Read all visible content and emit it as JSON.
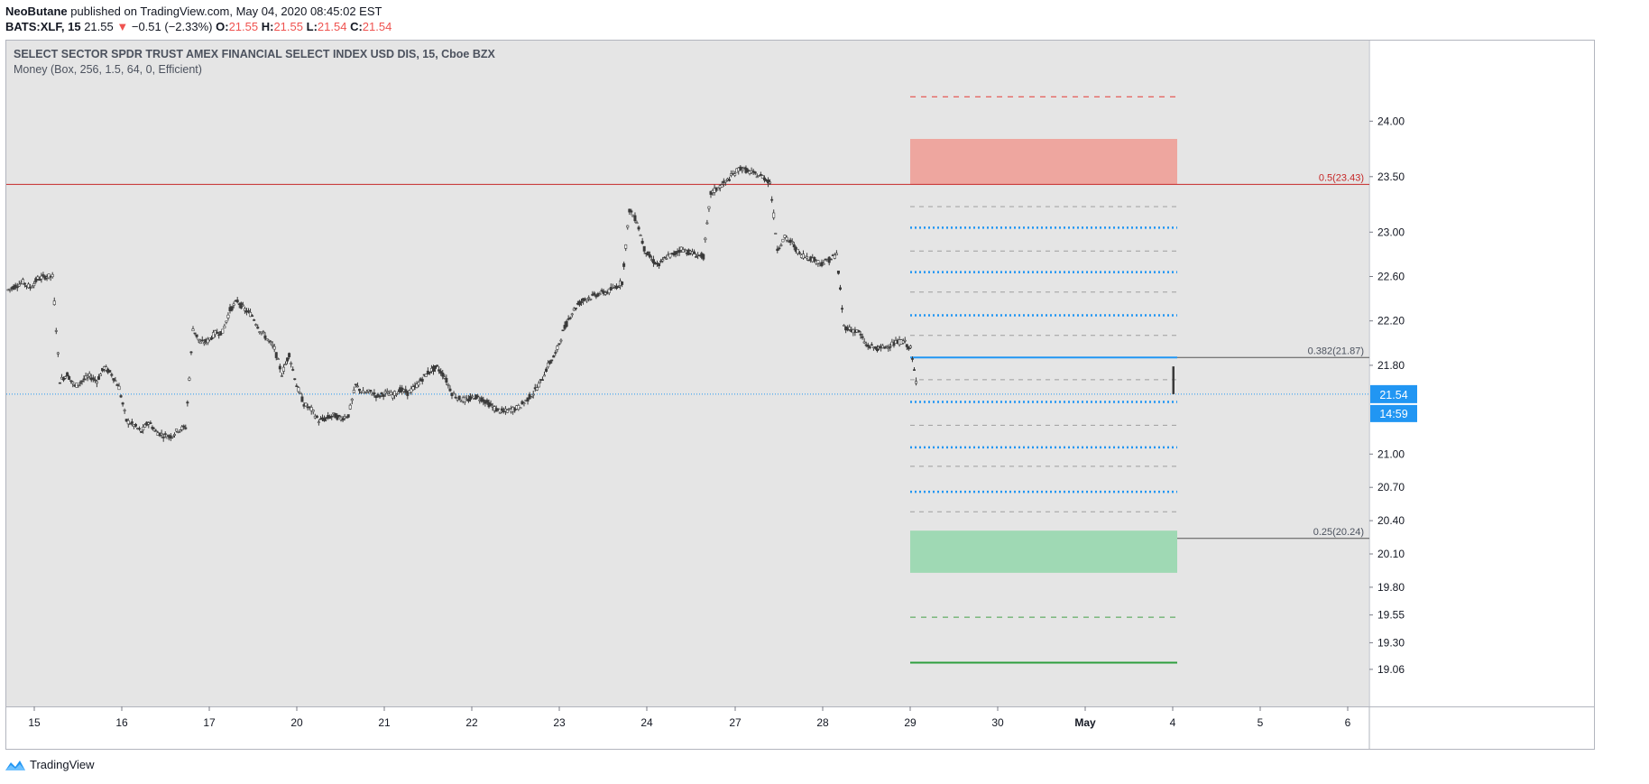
{
  "header": {
    "publisher": "NeoButane",
    "published_text": "published on TradingView.com, May 04, 2020 08:45:02 EST",
    "symbol": "BATS:XLF, 15",
    "last": "21.55",
    "change": "−0.51 (−2.33%)",
    "o_label": "O:",
    "o": "21.55",
    "h_label": "H:",
    "h": "21.55",
    "l_label": "L:",
    "l": "21.54",
    "c_label": "C:",
    "c": "21.54"
  },
  "legend": {
    "title": "SELECT SECTOR SPDR TRUST AMEX FINANCIAL SELECT INDEX USD DIS, 15, Cboe BZX",
    "indicator": "Money (Box, 256, 1.5, 64, 0, Efficient)"
  },
  "price_badge": "21.54",
  "countdown_badge": "14:59",
  "footer": {
    "brand": "TradingView"
  },
  "colors": {
    "background": "#e5e5e5",
    "candle": "#3a3a3a",
    "resistance_line": "#c62828",
    "blue_level": "#2196f3",
    "red_zone": "#f28b82",
    "green_zone": "#81d4a0",
    "badge": "#2196f3",
    "down": "#ef5350"
  },
  "chart_data": {
    "type": "candlestick",
    "y_ticks": [
      "24.00",
      "23.50",
      "23.00",
      "22.60",
      "22.20",
      "21.80",
      "21.00",
      "20.70",
      "20.40",
      "20.10",
      "19.80",
      "19.55",
      "19.30",
      "19.06"
    ],
    "x_ticks": [
      "15",
      "16",
      "17",
      "20",
      "21",
      "22",
      "23",
      "24",
      "27",
      "28",
      "29",
      "30",
      "May",
      "4",
      "5",
      "6"
    ],
    "fib_labels": [
      {
        "text": "0.5(23.43)",
        "value": 23.43
      },
      {
        "text": "0.382(21.87)",
        "value": 21.87
      },
      {
        "text": "0.25(20.24)",
        "value": 20.24
      }
    ],
    "resistance": 23.43,
    "last_price": 21.54,
    "zones": [
      {
        "name": "supply",
        "from": 23.43,
        "to": 23.84,
        "color": "red"
      },
      {
        "name": "demand",
        "from": 19.93,
        "to": 20.31,
        "color": "green"
      }
    ],
    "levels": {
      "red_dashed": [
        24.22
      ],
      "gray_dashed": [
        23.23,
        22.83,
        22.46,
        22.07,
        21.67,
        21.26,
        20.89,
        20.48
      ],
      "blue_dotted": [
        23.04,
        22.64,
        22.25,
        21.47,
        21.06,
        20.66
      ],
      "blue_solid": [
        21.87
      ],
      "green_dashed": [
        19.53
      ],
      "green_solid": [
        19.12
      ]
    },
    "path": [
      [
        0,
        22.48
      ],
      [
        2,
        22.55
      ],
      [
        3,
        22.5
      ],
      [
        4,
        22.58
      ],
      [
        5,
        22.6
      ],
      [
        6,
        22.6
      ],
      [
        7,
        21.66
      ],
      [
        8,
        21.72
      ],
      [
        9,
        21.61
      ],
      [
        10,
        21.66
      ],
      [
        11,
        21.7
      ],
      [
        12,
        21.66
      ],
      [
        13,
        21.78
      ],
      [
        14,
        21.72
      ],
      [
        15,
        21.6
      ],
      [
        16,
        21.3
      ],
      [
        17,
        21.26
      ],
      [
        18,
        21.2
      ],
      [
        19,
        21.29
      ],
      [
        20,
        21.2
      ],
      [
        21,
        21.17
      ],
      [
        22,
        21.16
      ],
      [
        23,
        21.22
      ],
      [
        24,
        21.24
      ],
      [
        25,
        22.13
      ],
      [
        26,
        22.0
      ],
      [
        27,
        22.02
      ],
      [
        28,
        22.09
      ],
      [
        29,
        22.1
      ],
      [
        30,
        22.3
      ],
      [
        31,
        22.38
      ],
      [
        32,
        22.3
      ],
      [
        33,
        22.25
      ],
      [
        34,
        22.12
      ],
      [
        35,
        22.04
      ],
      [
        36,
        21.95
      ],
      [
        37,
        21.72
      ],
      [
        38,
        21.9
      ],
      [
        39,
        21.62
      ],
      [
        40,
        21.45
      ],
      [
        41,
        21.4
      ],
      [
        42,
        21.3
      ],
      [
        43,
        21.32
      ],
      [
        44,
        21.35
      ],
      [
        45,
        21.32
      ],
      [
        46,
        21.35
      ],
      [
        47,
        21.62
      ],
      [
        48,
        21.55
      ],
      [
        49,
        21.56
      ],
      [
        50,
        21.52
      ],
      [
        51,
        21.55
      ],
      [
        52,
        21.53
      ],
      [
        53,
        21.58
      ],
      [
        54,
        21.55
      ],
      [
        55,
        21.6
      ],
      [
        56,
        21.68
      ],
      [
        57,
        21.75
      ],
      [
        58,
        21.78
      ],
      [
        59,
        21.7
      ],
      [
        60,
        21.55
      ],
      [
        61,
        21.5
      ],
      [
        62,
        21.48
      ],
      [
        63,
        21.52
      ],
      [
        64,
        21.5
      ],
      [
        65,
        21.45
      ],
      [
        66,
        21.4
      ],
      [
        67,
        21.38
      ],
      [
        68,
        21.4
      ],
      [
        69,
        21.42
      ],
      [
        70,
        21.48
      ],
      [
        71,
        21.55
      ],
      [
        72,
        21.65
      ],
      [
        73,
        21.8
      ],
      [
        74,
        21.9
      ],
      [
        75,
        22.1
      ],
      [
        76,
        22.25
      ],
      [
        77,
        22.35
      ],
      [
        78,
        22.4
      ],
      [
        79,
        22.42
      ],
      [
        80,
        22.45
      ],
      [
        81,
        22.46
      ],
      [
        82,
        22.5
      ],
      [
        83,
        22.55
      ],
      [
        84,
        23.2
      ],
      [
        85,
        23.1
      ],
      [
        86,
        22.85
      ],
      [
        87,
        22.75
      ],
      [
        88,
        22.7
      ],
      [
        89,
        22.78
      ],
      [
        90,
        22.8
      ],
      [
        91,
        22.85
      ],
      [
        92,
        22.82
      ],
      [
        93,
        22.8
      ],
      [
        94,
        22.78
      ],
      [
        95,
        23.35
      ],
      [
        96,
        23.4
      ],
      [
        97,
        23.45
      ],
      [
        98,
        23.52
      ],
      [
        99,
        23.58
      ],
      [
        100,
        23.55
      ],
      [
        101,
        23.52
      ],
      [
        102,
        23.5
      ],
      [
        103,
        23.45
      ],
      [
        104,
        22.85
      ],
      [
        105,
        22.95
      ],
      [
        106,
        22.9
      ],
      [
        107,
        22.8
      ],
      [
        108,
        22.78
      ],
      [
        109,
        22.75
      ],
      [
        110,
        22.72
      ],
      [
        111,
        22.75
      ],
      [
        112,
        22.8
      ],
      [
        113,
        22.15
      ],
      [
        114,
        22.12
      ],
      [
        115,
        22.1
      ],
      [
        116,
        21.98
      ],
      [
        117,
        21.96
      ],
      [
        118,
        21.95
      ],
      [
        119,
        21.98
      ],
      [
        120,
        22.0
      ],
      [
        121,
        22.02
      ],
      [
        122,
        21.95
      ],
      [
        123,
        21.55
      ]
    ],
    "path_x_note": "",
    "ylim": [
      19.06,
      24.0
    ]
  }
}
